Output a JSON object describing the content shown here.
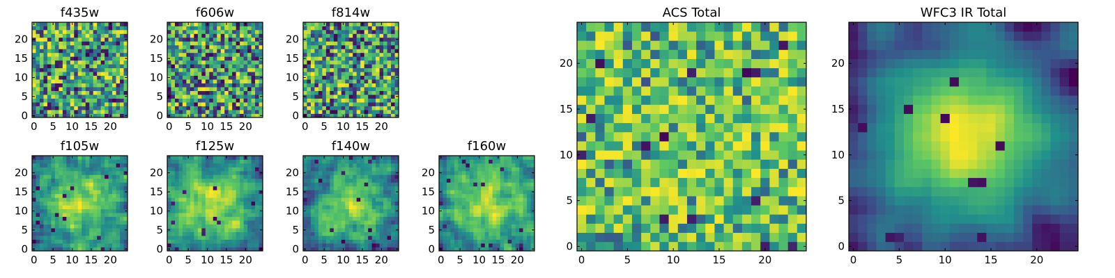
{
  "figure": {
    "colormap": "viridis",
    "colormap_stops": [
      "#440154",
      "#3b528b",
      "#21918c",
      "#5ec962",
      "#fde725"
    ],
    "background": "#ffffff"
  },
  "chart_data": [
    {
      "type": "heatmap",
      "id": "f435w",
      "title": "f435w",
      "grid_size": 25,
      "x_ticks": [
        0,
        5,
        10,
        15,
        20
      ],
      "y_ticks": [
        0,
        5,
        10,
        15,
        20
      ],
      "xlim": [
        -0.5,
        24.5
      ],
      "ylim": [
        -0.5,
        24.5
      ],
      "pattern": "noise",
      "seed": 11
    },
    {
      "type": "heatmap",
      "id": "f606w",
      "title": "f606w",
      "grid_size": 25,
      "x_ticks": [
        0,
        5,
        10,
        15,
        20
      ],
      "y_ticks": [
        0,
        5,
        10,
        15,
        20
      ],
      "xlim": [
        -0.5,
        24.5
      ],
      "ylim": [
        -0.5,
        24.5
      ],
      "pattern": "noise",
      "seed": 23
    },
    {
      "type": "heatmap",
      "id": "f814w",
      "title": "f814w",
      "grid_size": 25,
      "x_ticks": [
        0,
        5,
        10,
        15,
        20
      ],
      "y_ticks": [
        0,
        5,
        10,
        15,
        20
      ],
      "xlim": [
        -0.5,
        24.5
      ],
      "ylim": [
        -0.5,
        24.5
      ],
      "pattern": "noise",
      "seed": 37
    },
    {
      "type": "heatmap",
      "id": "f105w",
      "title": "f105w",
      "grid_size": 25,
      "x_ticks": [
        0,
        5,
        10,
        15,
        20
      ],
      "y_ticks": [
        0,
        5,
        10,
        15,
        20
      ],
      "xlim": [
        -0.5,
        24.5
      ],
      "ylim": [
        -0.5,
        24.5
      ],
      "pattern": "smooth",
      "seed": 41
    },
    {
      "type": "heatmap",
      "id": "f125w",
      "title": "f125w",
      "grid_size": 25,
      "x_ticks": [
        0,
        5,
        10,
        15,
        20
      ],
      "y_ticks": [
        0,
        5,
        10,
        15,
        20
      ],
      "xlim": [
        -0.5,
        24.5
      ],
      "ylim": [
        -0.5,
        24.5
      ],
      "pattern": "smooth",
      "seed": 53
    },
    {
      "type": "heatmap",
      "id": "f140w",
      "title": "f140w",
      "grid_size": 25,
      "x_ticks": [
        0,
        5,
        10,
        15,
        20
      ],
      "y_ticks": [
        0,
        5,
        10,
        15,
        20
      ],
      "xlim": [
        -0.5,
        24.5
      ],
      "ylim": [
        -0.5,
        24.5
      ],
      "pattern": "smooth",
      "seed": 67
    },
    {
      "type": "heatmap",
      "id": "f160w",
      "title": "f160w",
      "grid_size": 25,
      "x_ticks": [
        0,
        5,
        10,
        15,
        20
      ],
      "y_ticks": [
        0,
        5,
        10,
        15,
        20
      ],
      "xlim": [
        -0.5,
        24.5
      ],
      "ylim": [
        -0.5,
        24.5
      ],
      "pattern": "smooth",
      "seed": 79
    },
    {
      "type": "heatmap",
      "id": "acs-total",
      "title": "ACS Total",
      "grid_size": 25,
      "x_ticks": [
        0,
        5,
        10,
        15,
        20
      ],
      "y_ticks": [
        0,
        5,
        10,
        15,
        20
      ],
      "xlim": [
        -0.5,
        24.5
      ],
      "ylim": [
        -0.5,
        24.5
      ],
      "pattern": "noise-bright",
      "seed": 97
    },
    {
      "type": "heatmap",
      "id": "wfc3-ir-total",
      "title": "WFC3 IR Total",
      "grid_size": 25,
      "x_ticks": [
        0,
        5,
        10,
        15,
        20
      ],
      "y_ticks": [
        0,
        5,
        10,
        15,
        20
      ],
      "xlim": [
        -0.5,
        24.5
      ],
      "ylim": [
        -0.5,
        24.5
      ],
      "pattern": "blob",
      "seed": 113
    }
  ]
}
